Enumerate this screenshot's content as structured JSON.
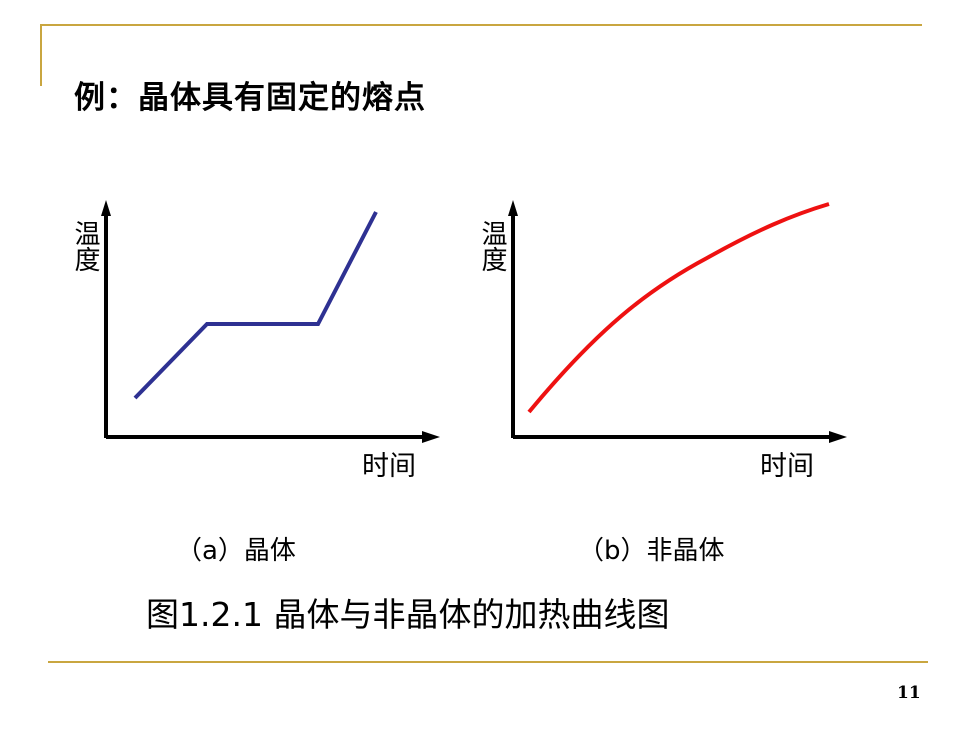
{
  "slide": {
    "title": "例：晶体具有固定的熔点",
    "caption": "图1.2.1 晶体与非晶体的加热曲线图",
    "page_number": "11",
    "rule_color": "#c9a640"
  },
  "panels": [
    {
      "y_label": "温度",
      "x_label": "时间",
      "sub_label": "（a）晶体",
      "curve_color": "#2e3192",
      "shape": "rise-plateau-rise"
    },
    {
      "y_label": "温度",
      "x_label": "时间",
      "sub_label": "（b）非晶体",
      "curve_color": "#ee1111",
      "shape": "smooth-concave-rise"
    }
  ]
}
